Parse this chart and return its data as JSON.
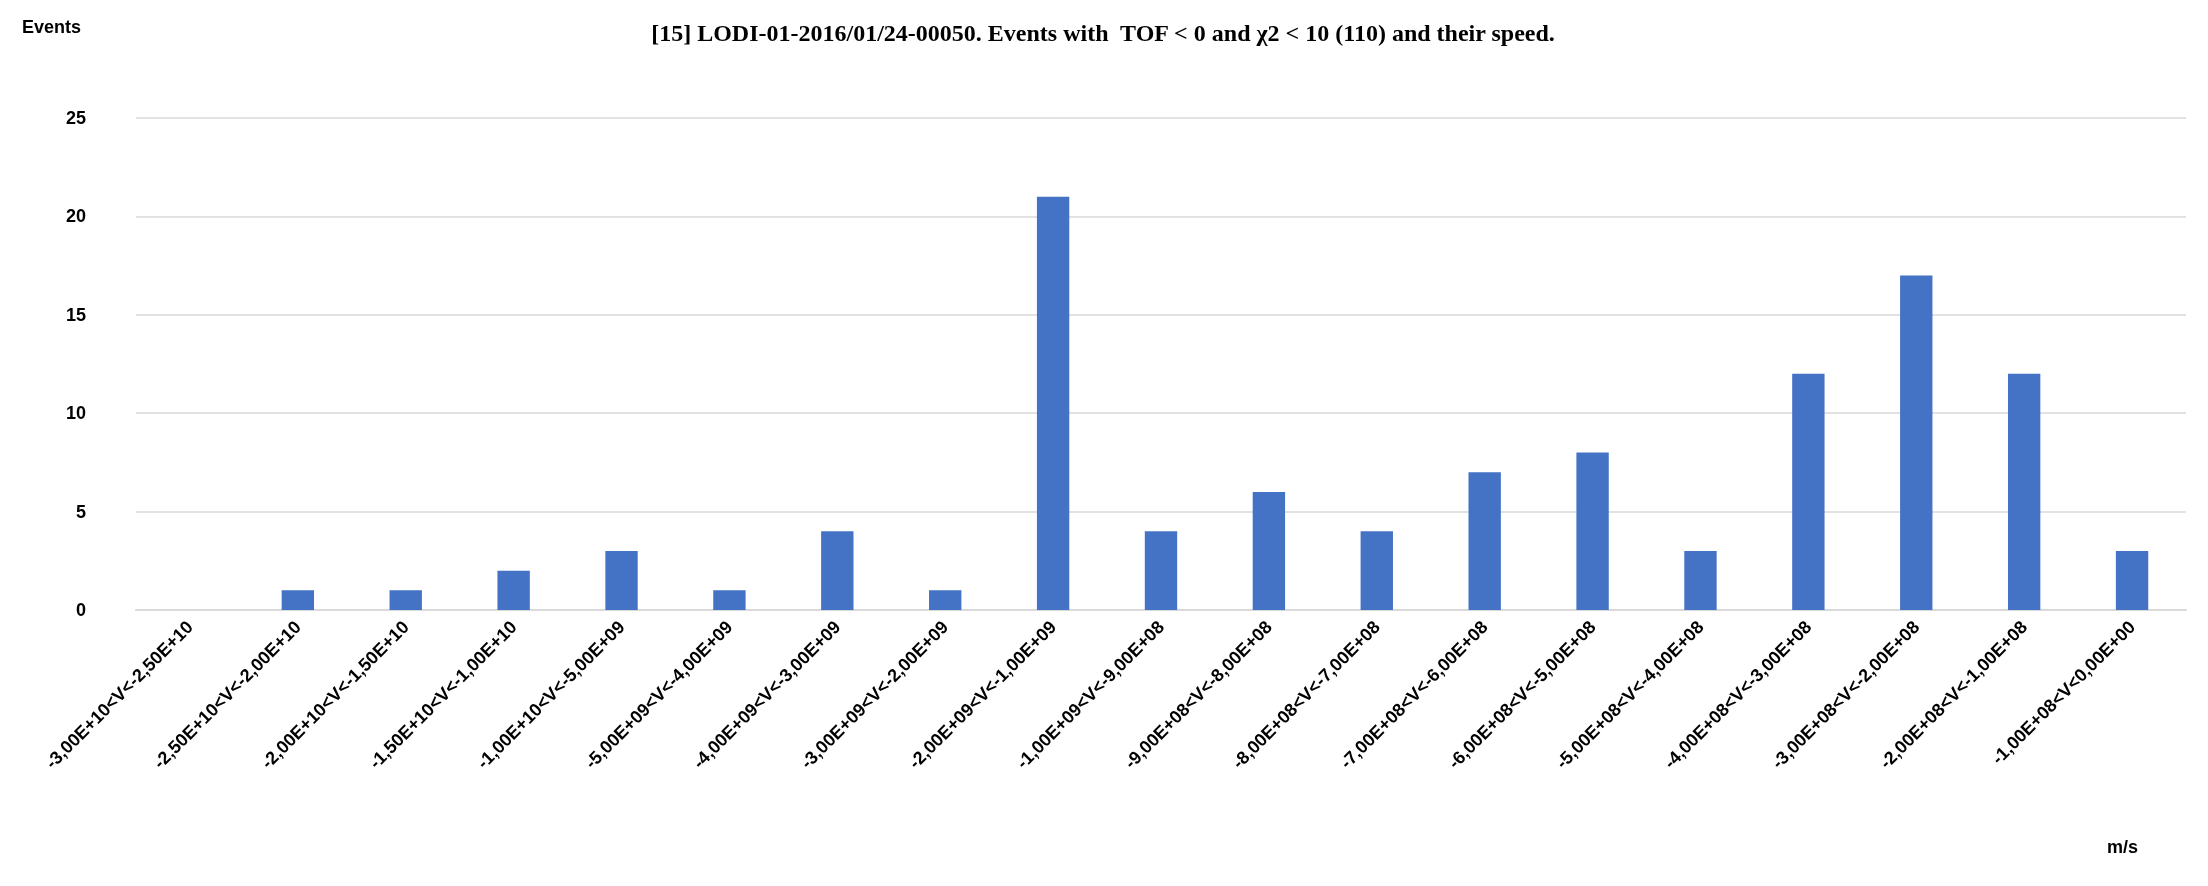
{
  "chart_data": {
    "type": "bar",
    "title": "[15] LODI-01-2016/01/24-00050. Events with  TOF < 0 and χ2 < 10 (110) and their speed.",
    "ylabel": "Events",
    "xlabel": "m/s",
    "categories": [
      "-3,00E+10<V<-2,50E+10",
      "-2,50E+10<V<-2,00E+10",
      "-2,00E+10<V<-1,50E+10",
      "-1,50E+10<V<-1,00E+10",
      "-1,00E+10<V<-5,00E+09",
      "-5,00E+09<V<-4,00E+09",
      "-4,00E+09<V<-3,00E+09",
      "-3,00E+09<V<-2,00E+09",
      "-2,00E+09<V<-1,00E+09",
      "-1,00E+09<V<-9,00E+08",
      "-9,00E+08<V<-8,00E+08",
      "-8,00E+08<V<-7,00E+08",
      "-7,00E+08<V<-6,00E+08",
      "-6,00E+08<V<-5,00E+08",
      "-5,00E+08<V<-4,00E+08",
      "-4,00E+08<V<-3,00E+08",
      "-3,00E+08<V<-2,00E+08",
      "-2,00E+08<V<-1,00E+08",
      "-1,00E+08<V<0,00E+00"
    ],
    "values": [
      0,
      1,
      1,
      2,
      3,
      1,
      4,
      1,
      21,
      4,
      6,
      4,
      7,
      8,
      3,
      12,
      17,
      12,
      3
    ],
    "color": "#4472c4",
    "ylim": [
      0,
      25
    ],
    "yticks": [
      0,
      5,
      10,
      15,
      20,
      25
    ],
    "grid": "y"
  }
}
